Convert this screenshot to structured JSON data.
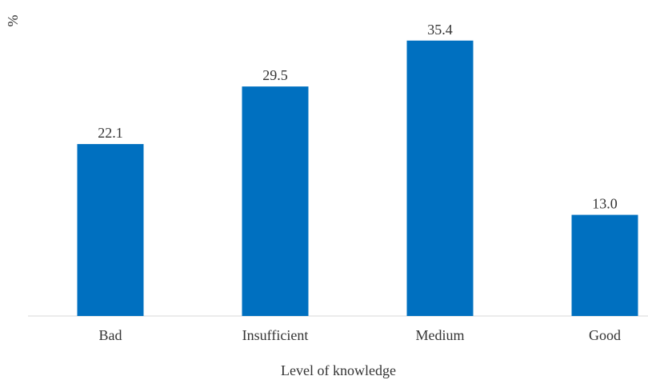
{
  "chart_data": {
    "type": "bar",
    "y_label": "%",
    "x_label": "Level of knowledge",
    "categories": [
      "Bad",
      "Insufficient",
      "Medium",
      "Good"
    ],
    "values": [
      22.1,
      29.5,
      35.4,
      13.0
    ],
    "value_labels": [
      "22.1",
      "29.5",
      "35.4",
      "13.0"
    ],
    "color": "#0070c0",
    "ylim": [
      0,
      40
    ]
  }
}
